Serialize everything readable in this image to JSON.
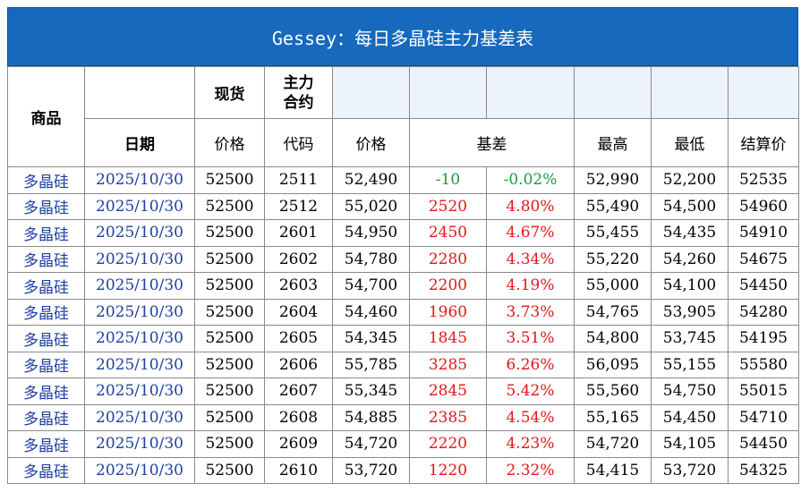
{
  "title": "Gessey：每日多晶硅主力基差表",
  "header": {
    "product": "商品",
    "spot": "现货",
    "main_contract": "主力\n合约",
    "date": "日期",
    "price": "价格",
    "code": "代码",
    "price2": "价格",
    "basis": "基差",
    "high": "最高",
    "low": "最低",
    "settle": "结算价"
  },
  "rows": [
    {
      "product": "多晶硅",
      "date": "2025/10/30",
      "spot": "52500",
      "code": "2511",
      "price": "52,490",
      "basis": "-10",
      "basis_pct": "-0.02%",
      "high": "52,990",
      "low": "52,200",
      "settle": "52535",
      "sign": "neg"
    },
    {
      "product": "多晶硅",
      "date": "2025/10/30",
      "spot": "52500",
      "code": "2512",
      "price": "55,020",
      "basis": "2520",
      "basis_pct": "4.80%",
      "high": "55,490",
      "low": "54,500",
      "settle": "54960",
      "sign": "pos"
    },
    {
      "product": "多晶硅",
      "date": "2025/10/30",
      "spot": "52500",
      "code": "2601",
      "price": "54,950",
      "basis": "2450",
      "basis_pct": "4.67%",
      "high": "55,455",
      "low": "54,435",
      "settle": "54910",
      "sign": "pos"
    },
    {
      "product": "多晶硅",
      "date": "2025/10/30",
      "spot": "52500",
      "code": "2602",
      "price": "54,780",
      "basis": "2280",
      "basis_pct": "4.34%",
      "high": "55,220",
      "low": "54,260",
      "settle": "54675",
      "sign": "pos"
    },
    {
      "product": "多晶硅",
      "date": "2025/10/30",
      "spot": "52500",
      "code": "2603",
      "price": "54,700",
      "basis": "2200",
      "basis_pct": "4.19%",
      "high": "55,000",
      "low": "54,100",
      "settle": "54450",
      "sign": "pos"
    },
    {
      "product": "多晶硅",
      "date": "2025/10/30",
      "spot": "52500",
      "code": "2604",
      "price": "54,460",
      "basis": "1960",
      "basis_pct": "3.73%",
      "high": "54,765",
      "low": "53,905",
      "settle": "54280",
      "sign": "pos"
    },
    {
      "product": "多晶硅",
      "date": "2025/10/30",
      "spot": "52500",
      "code": "2605",
      "price": "54,345",
      "basis": "1845",
      "basis_pct": "3.51%",
      "high": "54,800",
      "low": "53,745",
      "settle": "54195",
      "sign": "pos"
    },
    {
      "product": "多晶硅",
      "date": "2025/10/30",
      "spot": "52500",
      "code": "2606",
      "price": "55,785",
      "basis": "3285",
      "basis_pct": "6.26%",
      "high": "56,095",
      "low": "55,155",
      "settle": "55580",
      "sign": "pos"
    },
    {
      "product": "多晶硅",
      "date": "2025/10/30",
      "spot": "52500",
      "code": "2607",
      "price": "55,345",
      "basis": "2845",
      "basis_pct": "5.42%",
      "high": "55,560",
      "low": "54,750",
      "settle": "55015",
      "sign": "pos"
    },
    {
      "product": "多晶硅",
      "date": "2025/10/30",
      "spot": "52500",
      "code": "2608",
      "price": "54,885",
      "basis": "2385",
      "basis_pct": "4.54%",
      "high": "55,165",
      "low": "54,450",
      "settle": "54710",
      "sign": "pos"
    },
    {
      "product": "多晶硅",
      "date": "2025/10/30",
      "spot": "52500",
      "code": "2609",
      "price": "54,720",
      "basis": "2220",
      "basis_pct": "4.23%",
      "high": "54,720",
      "low": "54,105",
      "settle": "54450",
      "sign": "pos"
    },
    {
      "product": "多晶硅",
      "date": "2025/10/30",
      "spot": "52500",
      "code": "2610",
      "price": "53,720",
      "basis": "1220",
      "basis_pct": "2.32%",
      "high": "54,415",
      "low": "53,720",
      "settle": "54325",
      "sign": "pos"
    }
  ],
  "colors": {
    "title_bg": "#1669bd",
    "positive": "#e2161c",
    "negative": "#1c9b3a",
    "link_text": "#1f3fa0"
  }
}
